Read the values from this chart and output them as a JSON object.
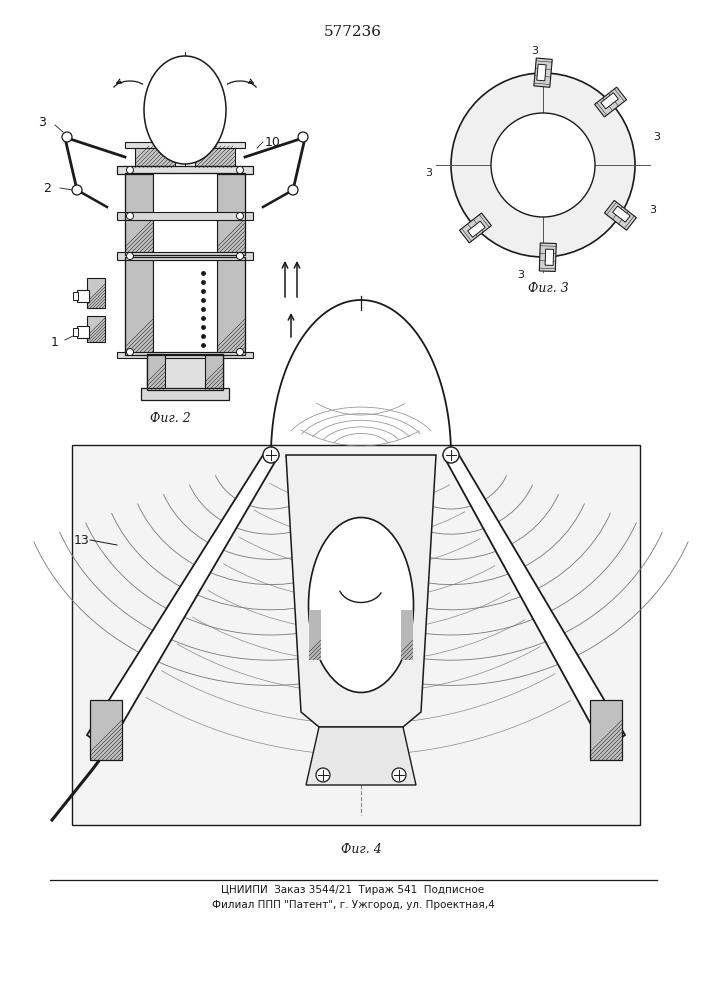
{
  "patent_number": "577236",
  "fig2_label": "Фиг. 2",
  "fig3_label": "Фиг. 3",
  "fig4_label": "Фиг. 4",
  "bottom_line1": "ЦНИИПИ  Заказ 3544/21  Тираж 541  Подписное",
  "bottom_line2": "Филиал ППП \"Патент\", г. Ужгород, ул. Проектная,4",
  "bg_color": "#ffffff",
  "lc": "#1a1a1a"
}
